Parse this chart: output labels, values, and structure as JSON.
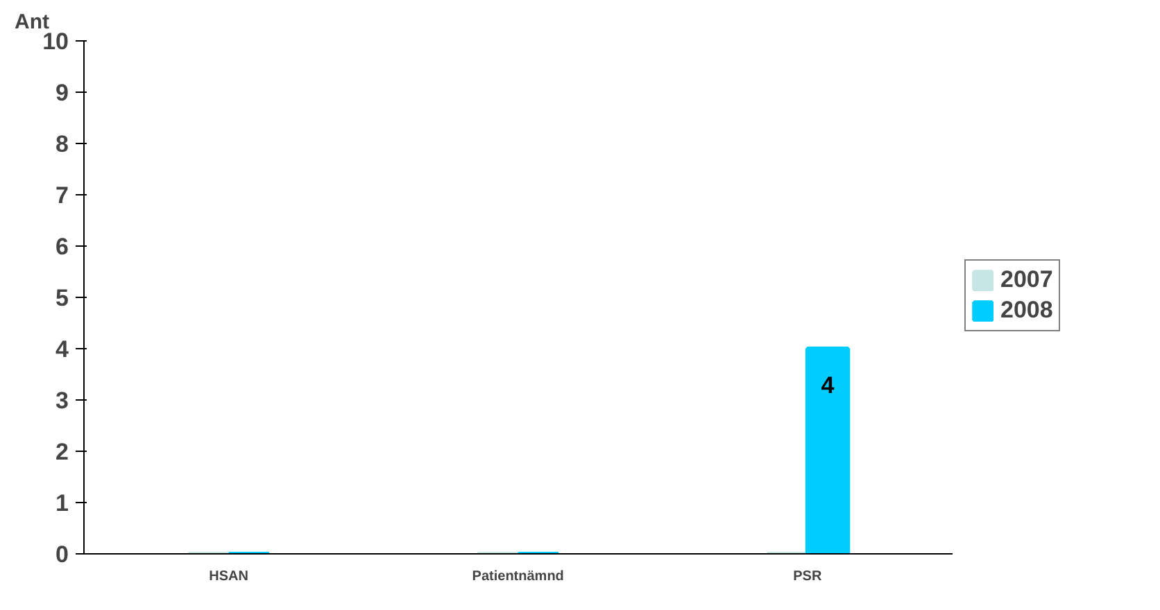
{
  "chart_data": {
    "type": "bar",
    "ylabel": "Ant",
    "categories": [
      "HSAN",
      "Patientnämnd",
      "PSR"
    ],
    "series": [
      {
        "name": "2007",
        "color": "#c6e6e6",
        "values": [
          0,
          0,
          0
        ]
      },
      {
        "name": "2008",
        "color": "#00ccff",
        "values": [
          0,
          0,
          4
        ],
        "value_labels": [
          null,
          null,
          "4"
        ]
      }
    ],
    "ylim": [
      0,
      10
    ],
    "yticks": [
      0,
      1,
      2,
      3,
      4,
      5,
      6,
      7,
      8,
      9,
      10
    ],
    "grid": false,
    "legend": "right"
  }
}
